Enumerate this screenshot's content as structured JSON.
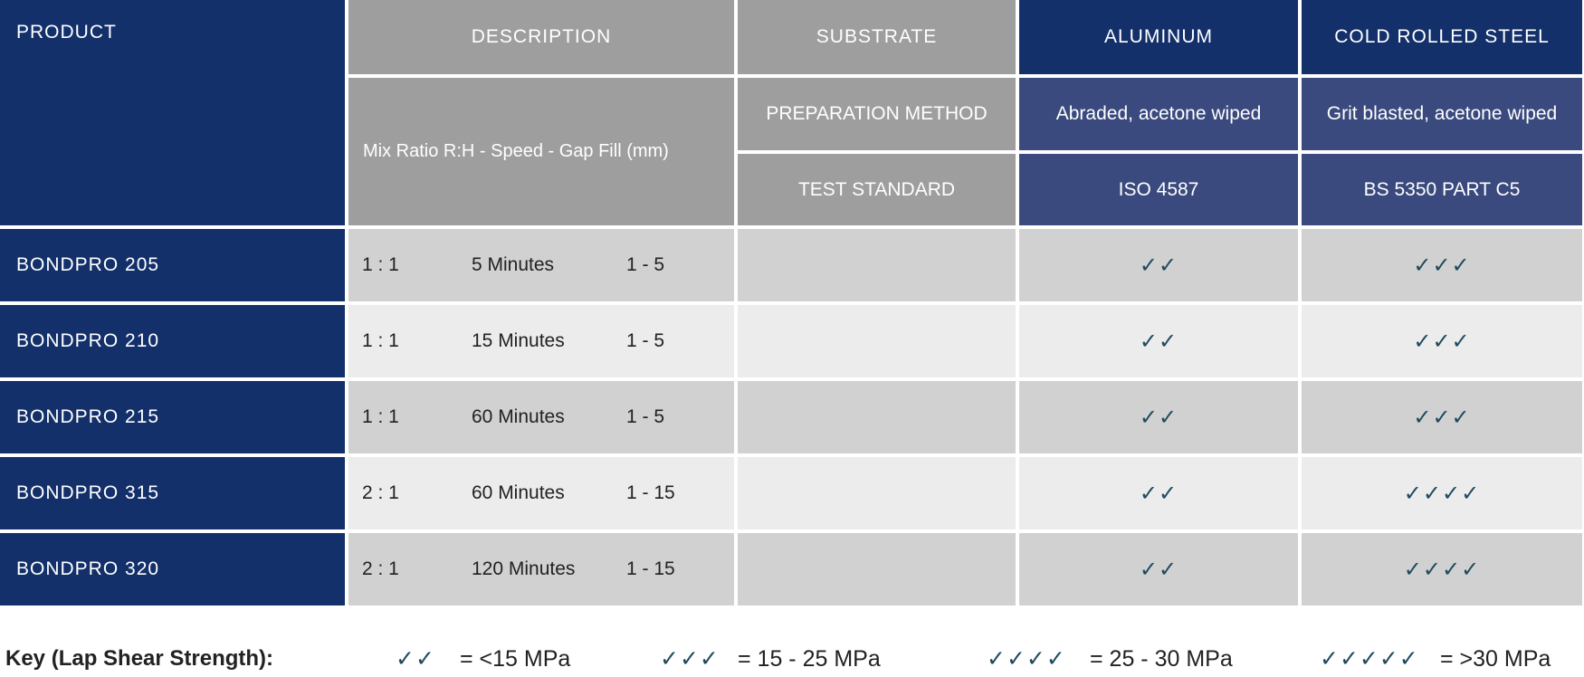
{
  "header": {
    "product": "PRODUCT",
    "description": "DESCRIPTION",
    "description_sub": "Mix Ratio R:H - Speed - Gap Fill (mm)",
    "substrate": "SUBSTRATE",
    "preparation_method": "PREPARATION METHOD",
    "test_standard": "TEST STANDARD",
    "substrates": [
      {
        "name": "ALUMINUM",
        "preparation": "Abraded, acetone wiped",
        "standard": "ISO 4587"
      },
      {
        "name": "COLD ROLLED STEEL",
        "preparation": "Grit blasted, acetone wiped",
        "standard": "BS 5350 PART C5"
      }
    ]
  },
  "rows": [
    {
      "product": "BONDPRO 205",
      "ratio": "1 : 1",
      "speed": "5 Minutes",
      "gap": "1 - 5",
      "aluminum": "✓✓",
      "steel": "✓✓✓"
    },
    {
      "product": "BONDPRO 210",
      "ratio": "1 : 1",
      "speed": "15 Minutes",
      "gap": "1 - 5",
      "aluminum": "✓✓",
      "steel": "✓✓✓"
    },
    {
      "product": "BONDPRO 215",
      "ratio": "1 : 1",
      "speed": "60 Minutes",
      "gap": "1 - 5",
      "aluminum": "✓✓",
      "steel": "✓✓✓"
    },
    {
      "product": "BONDPRO 315",
      "ratio": "2 : 1",
      "speed": "60 Minutes",
      "gap": "1 - 15",
      "aluminum": "✓✓",
      "steel": "✓✓✓✓"
    },
    {
      "product": "BONDPRO 320",
      "ratio": "2 : 1",
      "speed": "120 Minutes",
      "gap": "1 - 15",
      "aluminum": "✓✓",
      "steel": "✓✓✓✓"
    }
  ],
  "key": {
    "label": "Key (Lap Shear Strength):",
    "items": [
      {
        "checks": "✓✓",
        "text": "= <15 MPa"
      },
      {
        "checks": "✓✓✓",
        "text": "= 15 - 25 MPa"
      },
      {
        "checks": "✓✓✓✓",
        "text": "= 25 - 30 MPa"
      },
      {
        "checks": "✓✓✓✓✓",
        "text": "= >30 MPa"
      }
    ]
  },
  "colors": {
    "navy": "#13306a",
    "header_grey": "#9e9e9e",
    "header_blue": "#3a4a7e",
    "row_dark": "#d1d1d1",
    "row_light": "#ececec",
    "check": "#1f4a5e"
  }
}
